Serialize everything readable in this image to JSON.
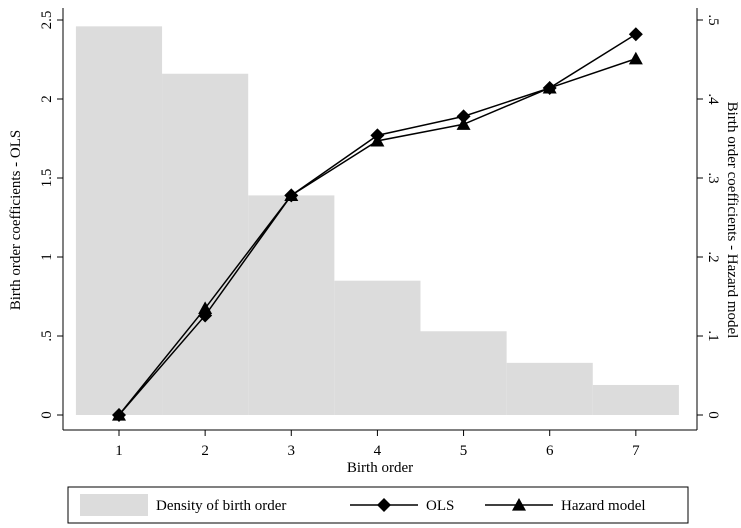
{
  "chart_data": {
    "type": "combo",
    "xlabel": "Birth order",
    "ylabel": "Birth order coefficients - OLS",
    "y2label": "Birth order coefficients - Hazard model",
    "x": [
      1,
      2,
      3,
      4,
      5,
      6,
      7
    ],
    "xlim": [
      0.35,
      7.71
    ],
    "xticks": [
      1,
      2,
      3,
      4,
      5,
      6,
      7
    ],
    "ylim": [
      -0.095,
      2.576
    ],
    "yticks": [
      0,
      {
        "value": 0.5,
        "label": ".5"
      },
      1,
      1.5,
      2,
      2.5
    ],
    "y2lim": [
      -0.019,
      0.5152
    ],
    "y2ticks": [
      0,
      {
        "value": 0.1,
        "label": ".1"
      },
      {
        "value": 0.2,
        "label": ".2"
      },
      {
        "value": 0.3,
        "label": ".3"
      },
      {
        "value": 0.4,
        "label": ".4"
      },
      {
        "value": 0.5,
        "label": ".5"
      }
    ],
    "series": [
      {
        "name": "Density of birth order",
        "type": "bar",
        "color": "#dcdcdc",
        "values": [
          2.46,
          2.16,
          1.39,
          0.85,
          0.53,
          0.33,
          0.19
        ]
      },
      {
        "name": "OLS",
        "type": "line",
        "marker": "diamond",
        "color": "#000000",
        "values": [
          0,
          0.63,
          1.39,
          1.77,
          1.89,
          2.07,
          2.41
        ]
      },
      {
        "name": "Hazard model",
        "type": "line",
        "marker": "triangle",
        "axis": "y2",
        "color": "#000000",
        "values": [
          0,
          0.135,
          0.278,
          0.347,
          0.368,
          0.414,
          0.451
        ]
      }
    ]
  }
}
